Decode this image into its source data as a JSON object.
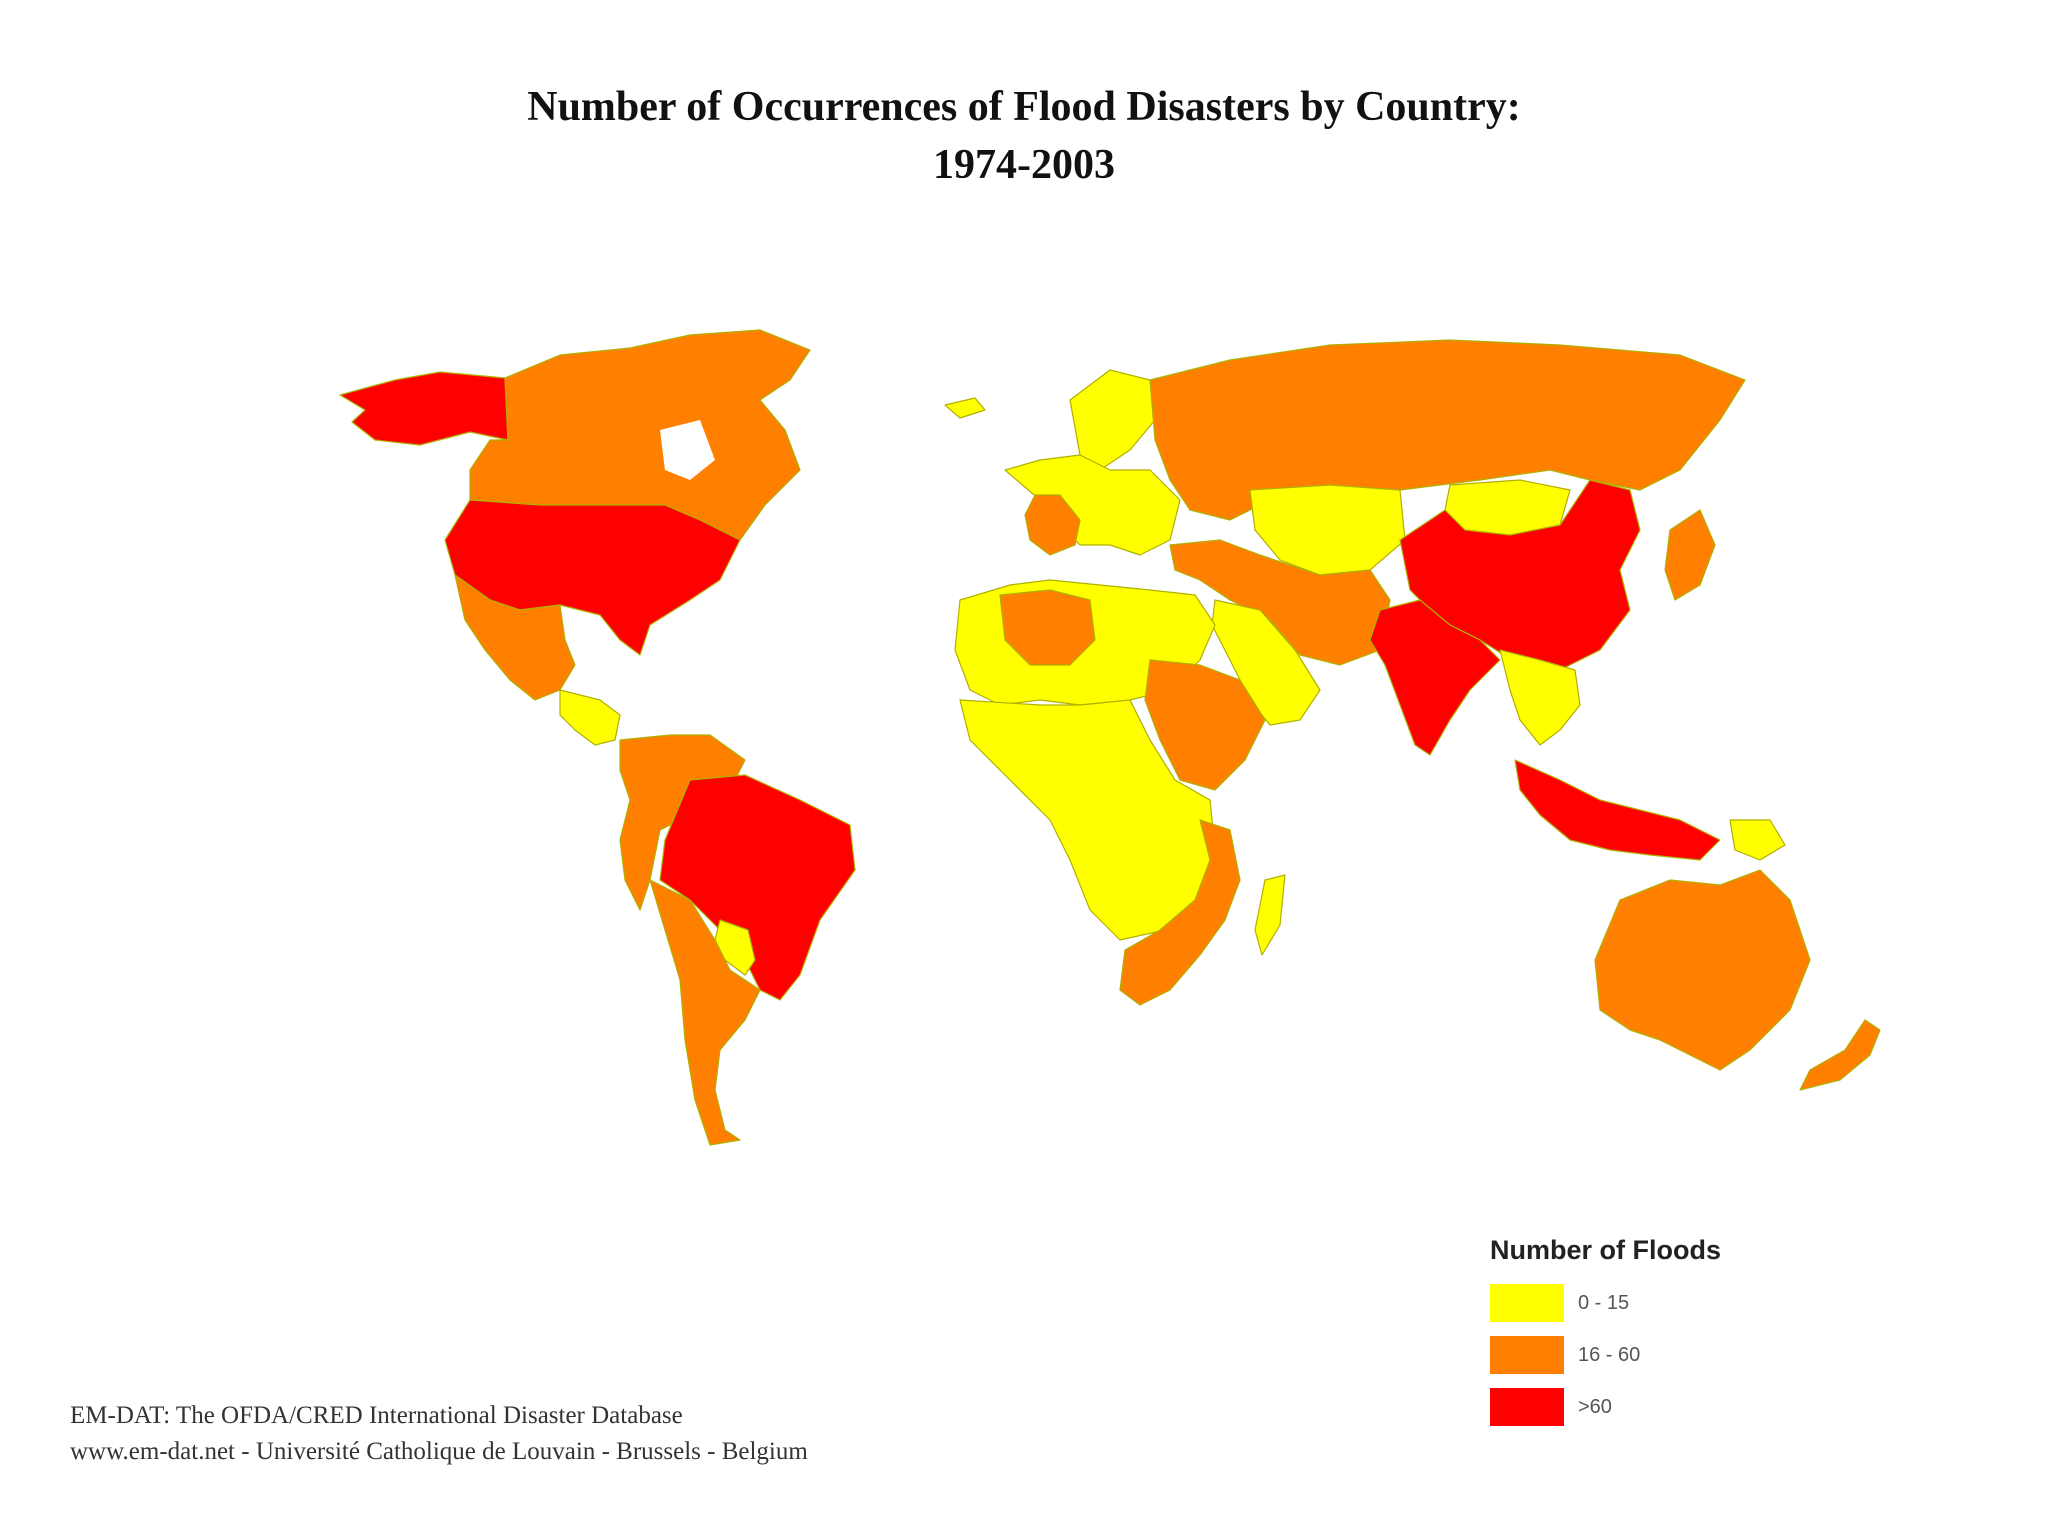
{
  "title": {
    "line1": "Number of Occurrences of Flood Disasters by Country:",
    "line2": "1974-2003"
  },
  "legend": {
    "title": "Number of Floods",
    "items": [
      {
        "label": "0 - 15",
        "color": "#ffff00"
      },
      {
        "label": "16 - 60",
        "color": "#ff8000"
      },
      {
        "label": ">60",
        "color": "#ff0000"
      }
    ]
  },
  "source": {
    "line1": "EM-DAT: The OFDA/CRED International Disaster Database",
    "line2": "www.em-dat.net - Université Catholique de Louvain - Brussels - Belgium"
  },
  "colors": {
    "low": "#ffff00",
    "mid": "#ff8000",
    "high": "#ff0000",
    "border": "#b0b000"
  },
  "regions": [
    {
      "name": "alaska",
      "class": "high"
    },
    {
      "name": "canada",
      "class": "mid"
    },
    {
      "name": "united-states",
      "class": "high"
    },
    {
      "name": "mexico",
      "class": "mid"
    },
    {
      "name": "central-america",
      "class": "low"
    },
    {
      "name": "northern-south-america",
      "class": "mid"
    },
    {
      "name": "brazil",
      "class": "high"
    },
    {
      "name": "southern-south-america",
      "class": "mid"
    },
    {
      "name": "bolivia-paraguay",
      "class": "low"
    },
    {
      "name": "greenland",
      "class": "none"
    },
    {
      "name": "iceland",
      "class": "low"
    },
    {
      "name": "western-europe",
      "class": "low"
    },
    {
      "name": "iberia-france",
      "class": "mid"
    },
    {
      "name": "scandinavia",
      "class": "low"
    },
    {
      "name": "russia",
      "class": "mid"
    },
    {
      "name": "kazakhstan",
      "class": "low"
    },
    {
      "name": "middle-east-turkey-iran",
      "class": "mid"
    },
    {
      "name": "arabia",
      "class": "low"
    },
    {
      "name": "china",
      "class": "high"
    },
    {
      "name": "mongolia",
      "class": "low"
    },
    {
      "name": "india",
      "class": "high"
    },
    {
      "name": "southeast-asia",
      "class": "low"
    },
    {
      "name": "indonesia",
      "class": "high"
    },
    {
      "name": "japan",
      "class": "mid"
    },
    {
      "name": "north-africa",
      "class": "low"
    },
    {
      "name": "algeria",
      "class": "mid"
    },
    {
      "name": "sudan-ethiopia",
      "class": "mid"
    },
    {
      "name": "central-africa",
      "class": "low"
    },
    {
      "name": "southern-africa",
      "class": "mid"
    },
    {
      "name": "madagascar",
      "class": "low"
    },
    {
      "name": "australia",
      "class": "mid"
    },
    {
      "name": "new-zealand",
      "class": "mid"
    },
    {
      "name": "papua-new-guinea",
      "class": "low"
    }
  ]
}
